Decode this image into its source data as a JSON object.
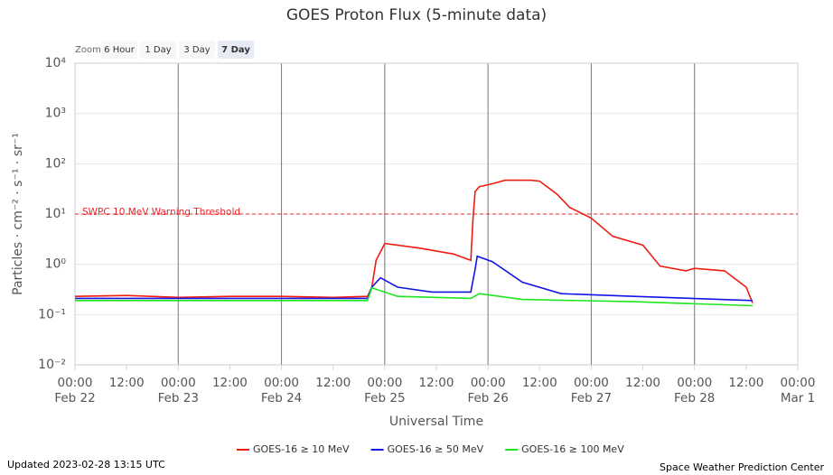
{
  "chart_data": {
    "type": "line",
    "title": "GOES Proton Flux (5-minute data)",
    "ylabel": "Particles · cm⁻² · s⁻¹ · sr⁻¹",
    "xlabel": "Universal Time",
    "ylog": true,
    "ylim": [
      0.01,
      10000
    ],
    "yticks": [
      {
        "value": 0.01,
        "label": "10⁻²"
      },
      {
        "value": 0.1,
        "label": "10⁻¹"
      },
      {
        "value": 1,
        "label": "10⁰"
      },
      {
        "value": 10,
        "label": "10¹"
      },
      {
        "value": 100,
        "label": "10²"
      },
      {
        "value": 1000,
        "label": "10³"
      },
      {
        "value": 10000,
        "label": "10⁴"
      }
    ],
    "xlim": [
      0,
      168
    ],
    "xticks": [
      {
        "value": 0,
        "label": "00:00",
        "date": "Feb 22"
      },
      {
        "value": 12,
        "label": "12:00"
      },
      {
        "value": 24,
        "label": "00:00",
        "date": "Feb 23"
      },
      {
        "value": 36,
        "label": "12:00"
      },
      {
        "value": 48,
        "label": "00:00",
        "date": "Feb 24"
      },
      {
        "value": 60,
        "label": "12:00"
      },
      {
        "value": 72,
        "label": "00:00",
        "date": "Feb 25"
      },
      {
        "value": 84,
        "label": "12:00"
      },
      {
        "value": 96,
        "label": "00:00",
        "date": "Feb 26"
      },
      {
        "value": 108,
        "label": "12:00"
      },
      {
        "value": 120,
        "label": "00:00",
        "date": "Feb 27"
      },
      {
        "value": 132,
        "label": "12:00"
      },
      {
        "value": 144,
        "label": "00:00",
        "date": "Feb 28"
      },
      {
        "value": 156,
        "label": "12:00"
      },
      {
        "value": 168,
        "label": "00:00",
        "date": "Mar 1"
      }
    ],
    "grid": true,
    "threshold": {
      "value": 10,
      "label": "SWPC 10 MeV Warning Threshold",
      "color": "#e8262b"
    },
    "series": [
      {
        "name": "GOES-16 ≥ 10 MeV",
        "color": "#f01c10",
        "x": [
          0,
          12,
          24,
          36,
          48,
          60,
          68,
          69,
          70,
          72,
          80,
          88,
          92,
          92.5,
          93,
          94,
          97,
          100,
          106,
          108,
          112,
          115,
          120,
          125,
          132,
          136,
          142,
          144,
          151,
          156,
          157.5
        ],
        "values": [
          0.23,
          0.24,
          0.22,
          0.23,
          0.23,
          0.22,
          0.23,
          0.35,
          1.2,
          2.6,
          2.1,
          1.6,
          1.2,
          8,
          28,
          35,
          40,
          47,
          47,
          45,
          25,
          13.5,
          8.3,
          3.6,
          2.4,
          0.92,
          0.74,
          0.83,
          0.74,
          0.35,
          0.17
        ]
      },
      {
        "name": "GOES-16 ≥ 50 MeV",
        "color": "#1414e6",
        "x": [
          0,
          24,
          48,
          68,
          69,
          71,
          75,
          83,
          92,
          93,
          93.5,
          97,
          104,
          113,
          130,
          157.5
        ],
        "values": [
          0.21,
          0.21,
          0.21,
          0.21,
          0.35,
          0.54,
          0.35,
          0.28,
          0.28,
          0.8,
          1.45,
          1.13,
          0.44,
          0.26,
          0.23,
          0.19
        ]
      },
      {
        "name": "GOES-16 ≥ 100 MeV",
        "color": "#1ee61e",
        "x": [
          0,
          24,
          48,
          68,
          69,
          75,
          92,
          94,
          104,
          130,
          157.5
        ],
        "values": [
          0.19,
          0.19,
          0.19,
          0.19,
          0.34,
          0.23,
          0.21,
          0.26,
          0.2,
          0.18,
          0.15
        ]
      }
    ]
  },
  "zoom": {
    "label": "Zoom",
    "buttons": [
      "6 Hour",
      "1 Day",
      "3 Day",
      "7 Day"
    ],
    "selected": 3
  },
  "footer": {
    "updated": "Updated 2023-02-28 13:15 UTC",
    "credit": "Space Weather Prediction Center"
  }
}
